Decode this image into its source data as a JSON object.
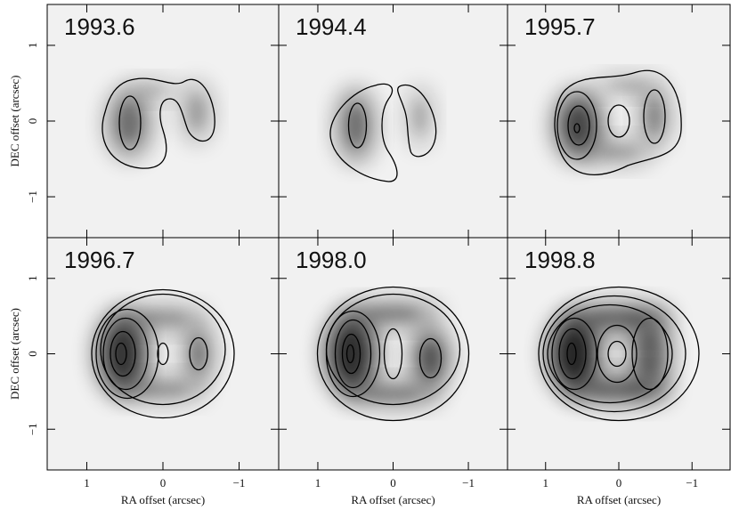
{
  "chart_data": {
    "type": "image-grid",
    "xlabel": "RA offset (arcsec)",
    "ylabel": "DEC offset (arcsec)",
    "xlim": [
      1.52,
      -1.52
    ],
    "ylim": [
      -1.54,
      1.54
    ],
    "xticks": [
      1,
      0,
      {
        "value": -1,
        "label": "−1"
      }
    ],
    "yticks": [
      1,
      0,
      {
        "value": -1,
        "label": "−1"
      }
    ],
    "panels": [
      {
        "title": "1993.6"
      },
      {
        "title": "1994.4"
      },
      {
        "title": "1995.7"
      },
      {
        "title": "1996.7"
      },
      {
        "title": "1998.0"
      },
      {
        "title": "1998.8"
      }
    ]
  }
}
